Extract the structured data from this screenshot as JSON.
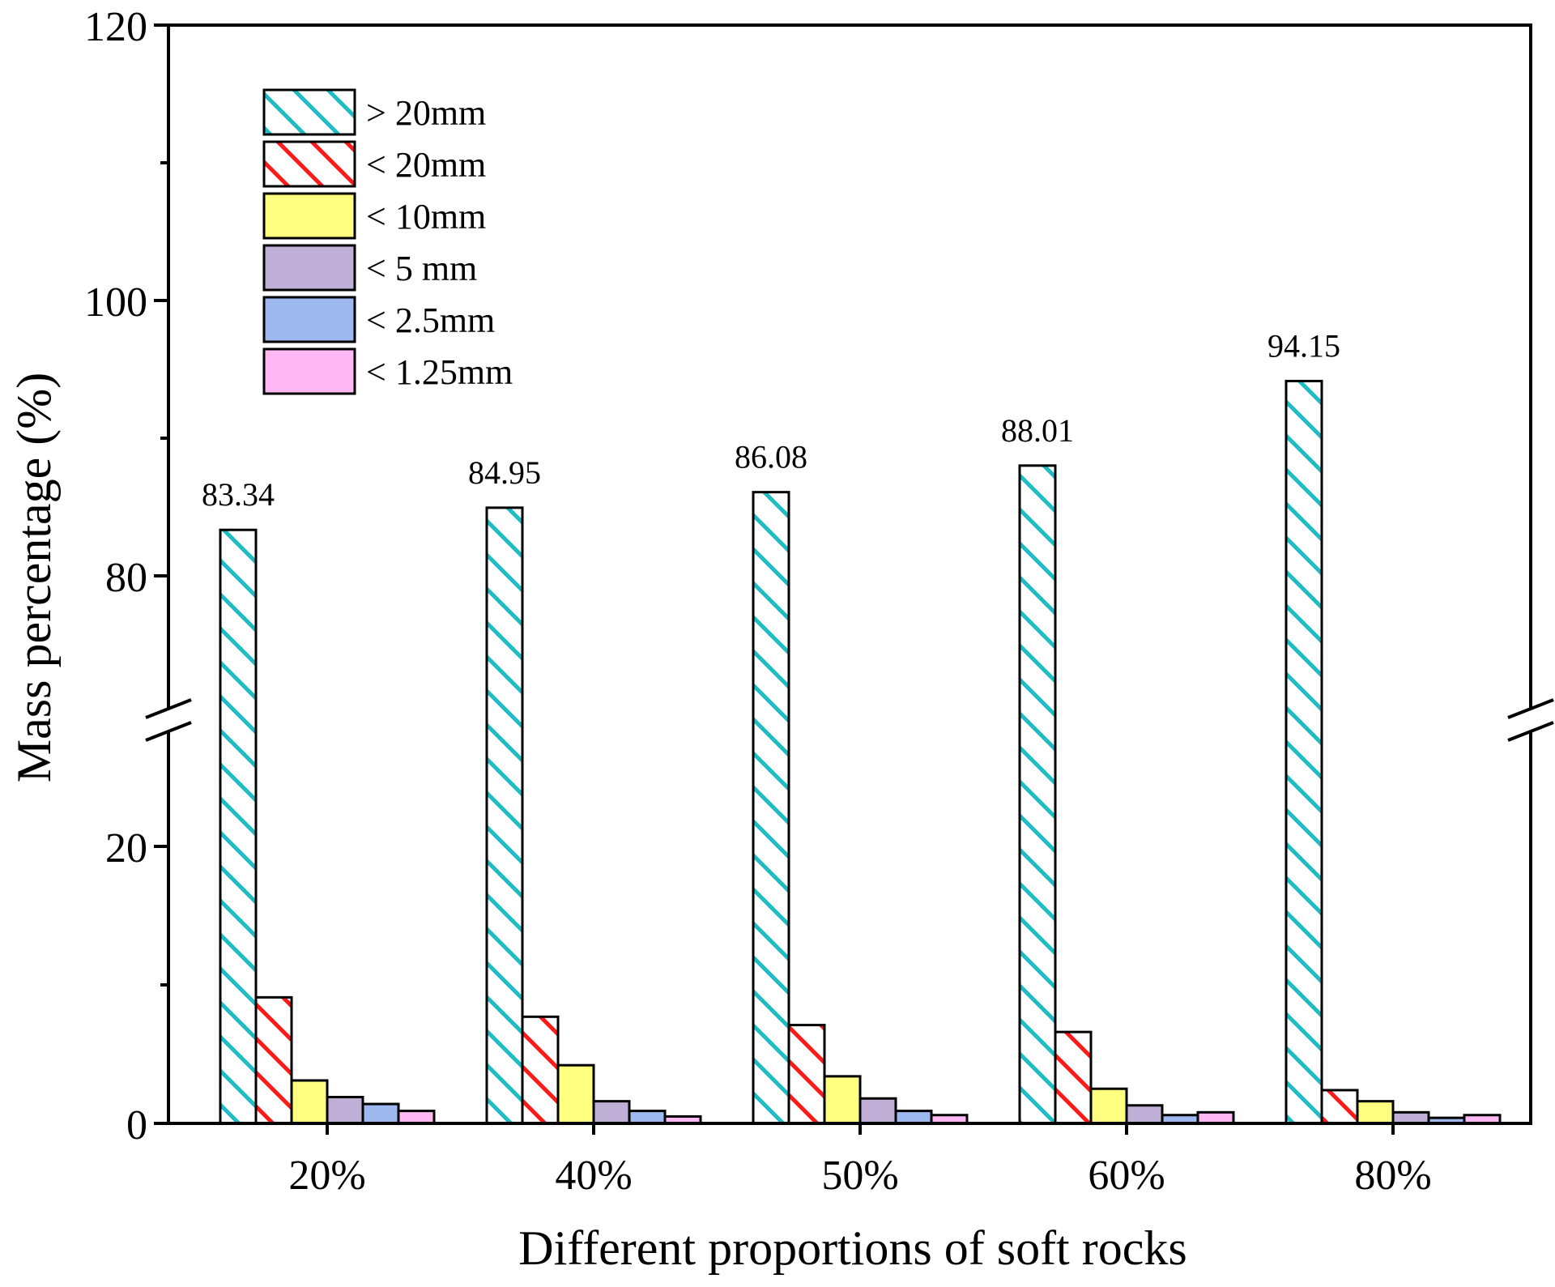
{
  "chart_data": {
    "type": "bar",
    "title": "",
    "xlabel": "Different proportions of soft rocks",
    "ylabel": "Mass percentage (%)",
    "categories": [
      "20%",
      "40%",
      "50%",
      "60%",
      "80%"
    ],
    "y_axis_break": {
      "lower_range": [
        0,
        26
      ],
      "upper_range": [
        70,
        120
      ]
    },
    "yticks": [
      0,
      20,
      80,
      100,
      120
    ],
    "legend_position": "top-left",
    "series": [
      {
        "name": "> 20mm",
        "pattern": "hatch",
        "color": "#1fbcc4",
        "values": [
          83.34,
          84.95,
          86.08,
          88.01,
          94.15
        ]
      },
      {
        "name": "< 20mm",
        "pattern": "hatch",
        "color": "#ff1a1a",
        "values": [
          9.1,
          7.7,
          7.1,
          6.6,
          2.4
        ]
      },
      {
        "name": "< 10mm",
        "pattern": "solid",
        "color": "#ffff80",
        "values": [
          3.1,
          4.2,
          3.4,
          2.5,
          1.6
        ]
      },
      {
        "name": "< 5 mm",
        "pattern": "solid",
        "color": "#c0b0d8",
        "values": [
          1.9,
          1.6,
          1.8,
          1.3,
          0.8
        ]
      },
      {
        "name": "< 2.5mm",
        "pattern": "solid",
        "color": "#9db9f0",
        "values": [
          1.4,
          0.9,
          0.9,
          0.6,
          0.4
        ]
      },
      {
        "name": "< 1.25mm",
        "pattern": "solid",
        "color": "#ffb8f4",
        "values": [
          0.9,
          0.5,
          0.6,
          0.8,
          0.6
        ]
      }
    ],
    "data_labels": [
      {
        "category": "20%",
        "series": "> 20mm",
        "text": "83.34"
      },
      {
        "category": "40%",
        "series": "> 20mm",
        "text": "84.95"
      },
      {
        "category": "50%",
        "series": "> 20mm",
        "text": "86.08"
      },
      {
        "category": "60%",
        "series": "> 20mm",
        "text": "88.01"
      },
      {
        "category": "80%",
        "series": "> 20mm",
        "text": "94.15"
      }
    ]
  }
}
